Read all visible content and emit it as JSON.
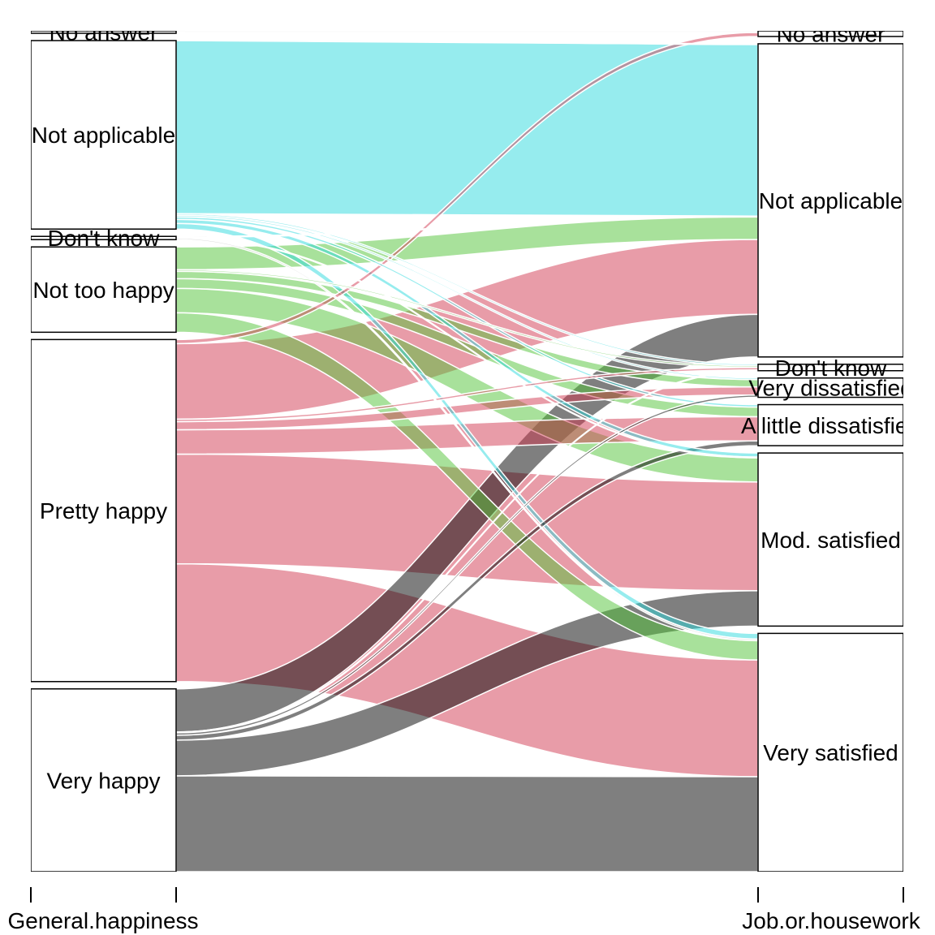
{
  "chart_data": {
    "type": "alluvial",
    "title": "",
    "axes": [
      {
        "name": "General.happiness",
        "strata": [
          "No answer",
          "Not applicable",
          "Don't know",
          "Not too happy",
          "Pretty happy",
          "Very happy"
        ]
      },
      {
        "name": "Job.or.housework",
        "strata": [
          "No answer",
          "Not applicable",
          "Don't know",
          "Very dissatisfied",
          "A little dissatisfied",
          "Mod. satisfied",
          "Very satisfied"
        ]
      }
    ],
    "flows_note_rows": "General.happiness",
    "flows": [
      [
        2,
        1,
        0,
        0,
        0,
        0,
        0
      ],
      [
        0,
        213,
        2,
        2,
        3,
        5,
        7
      ],
      [
        0,
        1,
        0,
        0,
        0,
        1,
        2
      ],
      [
        0,
        28,
        2,
        9,
        12,
        30,
        24
      ],
      [
        5,
        93,
        3,
        10,
        30,
        135,
        145
      ],
      [
        0,
        53,
        1,
        3,
        6,
        44,
        118
      ]
    ],
    "flow_colors": [
      "#e8e8e8",
      "#2DD9DD",
      "#bbbbbb",
      "#52C437",
      "#D23A52",
      "#000000"
    ],
    "flow_opacity": 0.5,
    "grid": false,
    "legend": "none"
  }
}
